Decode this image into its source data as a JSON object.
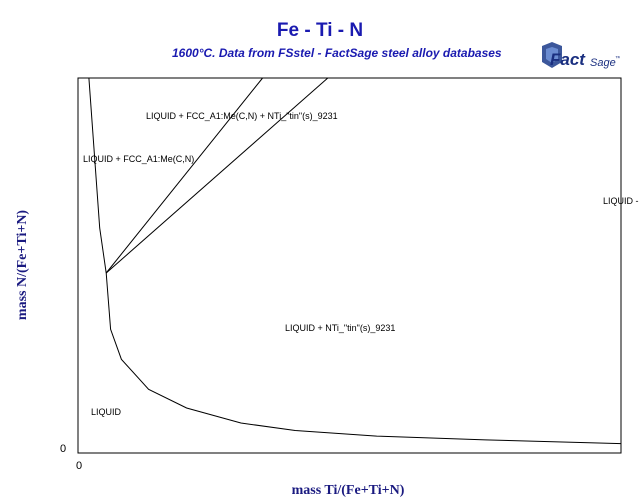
{
  "header": {
    "title": "Fe - Ti - N",
    "subtitle": "1600°C.  Data from FSstel - FactSage steel alloy databases"
  },
  "logo": {
    "text_main": "Fact",
    "text_sage": "Sage",
    "tm": "™",
    "icon": "factsage-logo"
  },
  "colors": {
    "title": "#1a1ab0",
    "axis_label": "#1a1a80",
    "line": "#000000",
    "frame": "#000000"
  },
  "chart_data": {
    "type": "line",
    "title": "Fe - Ti - N",
    "xlabel": "mass Ti/(Fe+Ti+N)",
    "ylabel": "mass N/(Fe+Ti+N)",
    "x_tick_labels": [
      "0"
    ],
    "y_tick_labels": [
      "0"
    ],
    "xlim": [
      0,
      1
    ],
    "ylim": [
      0,
      1
    ],
    "grid": false,
    "series": [
      {
        "values": [
          [
            0.02,
            1.0
          ],
          [
            0.03,
            0.8
          ],
          [
            0.04,
            0.6
          ],
          [
            0.052,
            0.48
          ],
          [
            0.06,
            0.33
          ],
          [
            0.08,
            0.25
          ],
          [
            0.13,
            0.17
          ],
          [
            0.2,
            0.12
          ],
          [
            0.3,
            0.08
          ],
          [
            0.4,
            0.06
          ],
          [
            0.55,
            0.045
          ],
          [
            0.75,
            0.035
          ],
          [
            1.0,
            0.025
          ]
        ]
      },
      {
        "values": [
          [
            0.052,
            0.48
          ],
          [
            0.34,
            1.0
          ]
        ]
      },
      {
        "values": [
          [
            0.052,
            0.48
          ],
          [
            0.46,
            1.0
          ]
        ]
      }
    ],
    "regions": [
      "LIQUID + FCC_A1:Me(C,N) + NTi_\"tin\"(s)_9231",
      "LIQUID + FCC_A1:Me(C,N)",
      "LIQUID -",
      "LIQUID + NTi_\"tin\"(s)_9231",
      "LIQUID"
    ]
  }
}
